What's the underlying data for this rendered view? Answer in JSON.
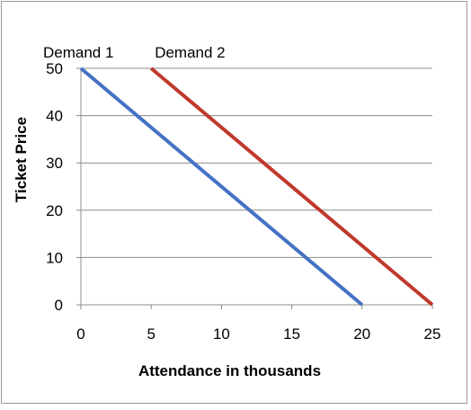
{
  "chart_data": {
    "type": "line",
    "title": "",
    "xlabel": "Attendance in thousands",
    "ylabel": "Ticket Price",
    "xlim": [
      0,
      25
    ],
    "ylim": [
      0,
      50
    ],
    "x_ticks": [
      "0",
      "5",
      "10",
      "15",
      "20",
      "25"
    ],
    "y_ticks": [
      "0",
      "10",
      "20",
      "30",
      "40",
      "50"
    ],
    "grid": "horizontal",
    "legend": "none",
    "series": [
      {
        "name": "Demand 1",
        "color": "#4472C4",
        "points": [
          [
            0,
            50
          ],
          [
            20,
            0
          ]
        ]
      },
      {
        "name": "Demand 2",
        "color": "#C0392B",
        "points": [
          [
            5,
            50
          ],
          [
            25,
            0
          ]
        ]
      }
    ]
  }
}
